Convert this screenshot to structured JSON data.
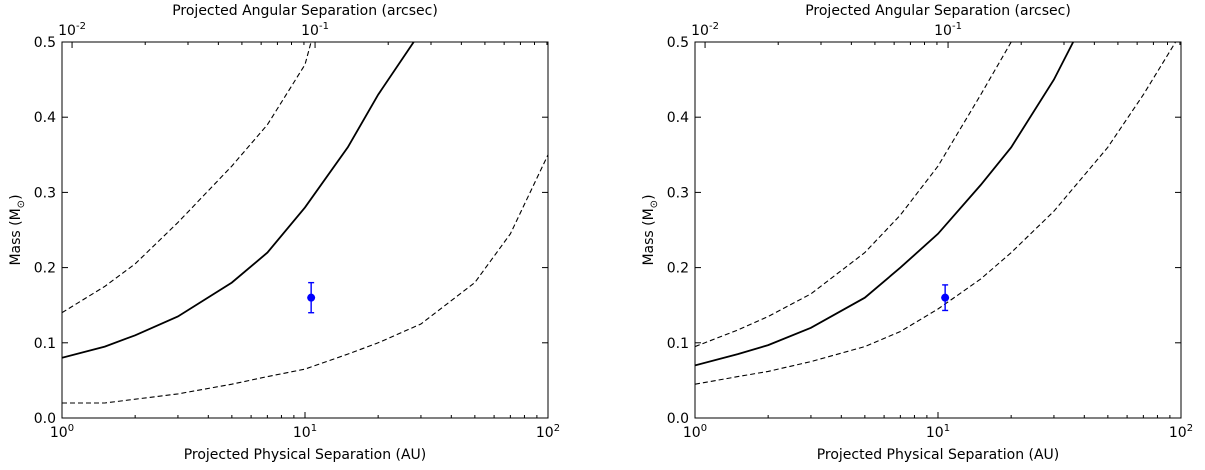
{
  "chart_data": [
    {
      "type": "line",
      "xlabel": "Projected Physical Separation (AU)",
      "ylabel": "Mass (M",
      "ylabel_symbol": "⊙",
      "ylabel_close": ")",
      "top_xlabel": "Projected Angular Separation (arcsec)",
      "xscale": "log",
      "xlim": [
        1,
        100
      ],
      "ylim": [
        0,
        0.5
      ],
      "grid": false,
      "x_ticks": [
        {
          "base": "10",
          "exp": "0",
          "value": 1
        },
        {
          "base": "10",
          "exp": "1",
          "value": 10
        },
        {
          "base": "10",
          "exp": "2",
          "value": 100
        }
      ],
      "top_ticks": [
        {
          "base": "10",
          "exp": "-2",
          "value": 1.1
        },
        {
          "base": "10",
          "exp": "-1",
          "value": 11
        }
      ],
      "y_ticks": [
        "0.0",
        "0.1",
        "0.2",
        "0.3",
        "0.4",
        "0.5"
      ],
      "series": [
        {
          "style": "solid",
          "color": "#000000",
          "x": [
            1,
            1.5,
            2,
            3,
            5,
            7,
            10,
            15,
            20,
            28
          ],
          "y": [
            0.08,
            0.095,
            0.11,
            0.135,
            0.18,
            0.22,
            0.28,
            0.36,
            0.43,
            0.5
          ]
        },
        {
          "style": "dashed",
          "color": "#000000",
          "x": [
            1,
            1.5,
            2,
            3,
            5,
            7,
            10,
            10.6
          ],
          "y": [
            0.14,
            0.175,
            0.205,
            0.26,
            0.335,
            0.39,
            0.47,
            0.5
          ]
        },
        {
          "style": "dashed",
          "color": "#000000",
          "x": [
            1,
            1.5,
            2,
            3,
            5,
            7,
            10,
            15,
            20,
            30,
            50,
            70,
            100
          ],
          "y": [
            0.02,
            0.02,
            0.025,
            0.032,
            0.045,
            0.055,
            0.065,
            0.085,
            0.1,
            0.125,
            0.18,
            0.245,
            0.35
          ]
        }
      ],
      "points": [
        {
          "x": 10.6,
          "y": 0.16,
          "yerr": 0.02,
          "color": "#0000ff"
        }
      ]
    },
    {
      "type": "line",
      "xlabel": "Projected Physical Separation (AU)",
      "ylabel": "Mass (M",
      "ylabel_symbol": "⊙",
      "ylabel_close": ")",
      "top_xlabel": "Projected Angular Separation (arcsec)",
      "xscale": "log",
      "xlim": [
        1,
        100
      ],
      "ylim": [
        0,
        0.5
      ],
      "grid": false,
      "x_ticks": [
        {
          "base": "10",
          "exp": "0",
          "value": 1
        },
        {
          "base": "10",
          "exp": "1",
          "value": 10
        },
        {
          "base": "10",
          "exp": "2",
          "value": 100
        }
      ],
      "top_ticks": [
        {
          "base": "10",
          "exp": "-2",
          "value": 1.1
        },
        {
          "base": "10",
          "exp": "-1",
          "value": 11
        }
      ],
      "y_ticks": [
        "0.0",
        "0.1",
        "0.2",
        "0.3",
        "0.4",
        "0.5"
      ],
      "series": [
        {
          "style": "solid",
          "color": "#000000",
          "x": [
            1,
            1.5,
            2,
            3,
            5,
            7,
            10,
            15,
            20,
            30,
            36
          ],
          "y": [
            0.07,
            0.085,
            0.097,
            0.12,
            0.16,
            0.2,
            0.245,
            0.31,
            0.36,
            0.45,
            0.5
          ]
        },
        {
          "style": "dashed",
          "color": "#000000",
          "x": [
            1,
            1.5,
            2,
            3,
            5,
            7,
            10,
            15,
            20
          ],
          "y": [
            0.095,
            0.117,
            0.135,
            0.165,
            0.22,
            0.27,
            0.335,
            0.43,
            0.5
          ]
        },
        {
          "style": "dashed",
          "color": "#000000",
          "x": [
            1,
            1.5,
            2,
            3,
            5,
            7,
            10,
            15,
            20,
            30,
            50,
            70,
            95
          ],
          "y": [
            0.045,
            0.055,
            0.062,
            0.075,
            0.095,
            0.115,
            0.145,
            0.185,
            0.22,
            0.275,
            0.36,
            0.43,
            0.5
          ]
        }
      ],
      "points": [
        {
          "x": 10.7,
          "y": 0.16,
          "yerr": 0.017,
          "color": "#0000ff"
        }
      ]
    }
  ]
}
